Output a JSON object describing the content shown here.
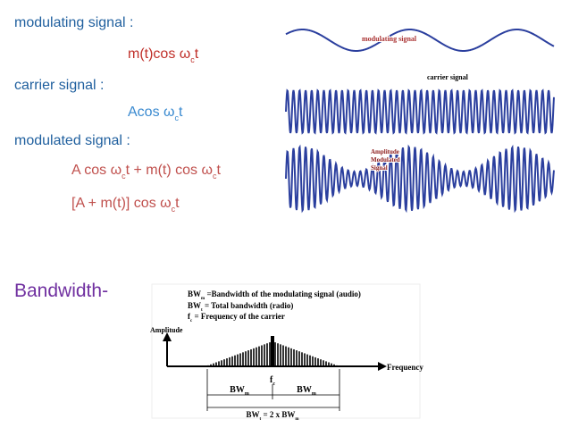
{
  "text_lines": [
    [
      {
        "text": "modulating signal :"
      }
    ],
    [
      {
        "text": "m(t)cos ω",
        "sub": "c"
      },
      {
        "text": "t"
      }
    ],
    [
      {
        "text": "carrier signal :"
      }
    ],
    [
      {
        "text": "Acos ω",
        "sub": "c"
      },
      {
        "text": "t"
      }
    ],
    [
      {
        "text": "modulated signal :"
      }
    ],
    [
      {
        "text": "A cos ω",
        "sub": "c"
      },
      {
        "text": "t + m(t) cos ω",
        "sub": "c"
      },
      {
        "text": "t"
      }
    ],
    [
      {
        "text": "[A + m(t)] cos ω",
        "sub": "c"
      },
      {
        "text": "t"
      }
    ],
    [
      {
        "text": "Bandwidth-"
      }
    ]
  ],
  "waveform_labels": [
    [
      {
        "text": "modulating signal"
      }
    ],
    [
      {
        "text": "carrier signal"
      }
    ],
    [
      {
        "text": "Amplitude"
      }
    ],
    [
      {
        "text": "Modulated"
      }
    ],
    [
      {
        "text": "Signal"
      }
    ]
  ],
  "bandwidth_diagram": [
    [
      {
        "text": "BW",
        "sub": "m"
      },
      {
        "text": " =Bandwidth of the modulating signal (audio)"
      }
    ],
    [
      {
        "text": "BW",
        "sub": "t"
      },
      {
        "text": " = Total bandwidth (radio)"
      }
    ],
    [
      {
        "text": "f",
        "sub": "c"
      },
      {
        "text": " = Frequency of the carrier"
      }
    ],
    [
      {
        "text": "Amplitude"
      }
    ],
    [
      {
        "text": "Frequency"
      }
    ],
    [
      {
        "text": "f",
        "sub": "c"
      }
    ],
    [
      {
        "text": "BW",
        "sub": "m"
      }
    ],
    [
      {
        "text": "BW",
        "sub": "m"
      }
    ],
    [
      {
        "text": "BW",
        "sub": "t"
      },
      {
        "text": " = 2 x BW",
        "sub": "m"
      }
    ]
  ]
}
